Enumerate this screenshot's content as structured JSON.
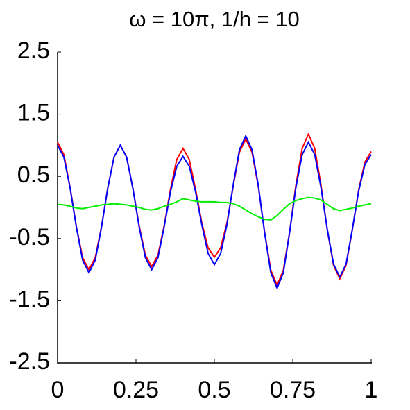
{
  "chart_data": {
    "type": "line",
    "title": "ω = 10π, 1/h = 10",
    "x": [
      0,
      0.02,
      0.04,
      0.06,
      0.08,
      0.1,
      0.12,
      0.14,
      0.16,
      0.18,
      0.2,
      0.22,
      0.24,
      0.26,
      0.28,
      0.3,
      0.32,
      0.34,
      0.36,
      0.38,
      0.4,
      0.42,
      0.44,
      0.46,
      0.48,
      0.5,
      0.52,
      0.54,
      0.56,
      0.58,
      0.6,
      0.62,
      0.64,
      0.66,
      0.68,
      0.7,
      0.72,
      0.74,
      0.76,
      0.78,
      0.8,
      0.82,
      0.84,
      0.86,
      0.88,
      0.9,
      0.92,
      0.94,
      0.96,
      0.98,
      1
    ],
    "series": [
      {
        "color": "#ff0000",
        "values": [
          1.05,
          0.85,
          0.32,
          -0.31,
          -0.81,
          -1.0,
          -0.81,
          -0.31,
          0.31,
          0.81,
          1.0,
          0.81,
          0.31,
          -0.29,
          -0.77,
          -0.95,
          -0.77,
          -0.29,
          0.29,
          0.77,
          0.95,
          0.77,
          0.29,
          -0.25,
          -0.65,
          -0.8,
          -0.65,
          -0.25,
          0.34,
          0.89,
          1.1,
          0.89,
          0.34,
          -0.39,
          -1.01,
          -1.25,
          -1.01,
          -0.39,
          0.36,
          0.95,
          1.18,
          0.95,
          0.36,
          -0.36,
          -0.93,
          -1.15,
          -0.93,
          -0.36,
          0.28,
          0.73,
          0.9
        ]
      },
      {
        "color": "#0000ff",
        "values": [
          1.0,
          0.81,
          0.31,
          -0.32,
          -0.85,
          -1.05,
          -0.85,
          -0.32,
          0.31,
          0.81,
          1.0,
          0.81,
          0.31,
          -0.31,
          -0.81,
          -1.0,
          -0.81,
          -0.31,
          0.25,
          0.66,
          0.82,
          0.66,
          0.25,
          -0.28,
          -0.74,
          -0.92,
          -0.74,
          -0.28,
          0.36,
          0.93,
          1.15,
          0.93,
          0.36,
          -0.4,
          -1.05,
          -1.3,
          -1.05,
          -0.4,
          0.32,
          0.85,
          1.05,
          0.85,
          0.32,
          -0.35,
          -0.91,
          -1.12,
          -0.91,
          -0.35,
          0.26,
          0.69,
          0.85
        ]
      },
      {
        "color": "#00ee00",
        "values": [
          0.05,
          0.04,
          0.02,
          -0.01,
          -0.02,
          0.0,
          0.02,
          0.04,
          0.05,
          0.06,
          0.05,
          0.04,
          0.02,
          0.0,
          -0.03,
          -0.04,
          -0.02,
          0.02,
          0.05,
          0.09,
          0.14,
          0.12,
          0.1,
          0.09,
          0.09,
          0.09,
          0.08,
          0.08,
          0.06,
          0.02,
          -0.04,
          -0.1,
          -0.15,
          -0.19,
          -0.2,
          -0.13,
          -0.03,
          0.06,
          0.11,
          0.14,
          0.16,
          0.15,
          0.12,
          0.05,
          -0.02,
          -0.05,
          -0.03,
          -0.01,
          0.02,
          0.04,
          0.06
        ]
      }
    ],
    "xlim": [
      0,
      1
    ],
    "xticks": [
      0,
      0.25,
      0.5,
      0.75,
      1
    ],
    "ylim": [
      -2.5,
      2.5
    ],
    "yticks": [
      2.5,
      1.5,
      0.5,
      -0.5,
      -1.5,
      -2.5
    ]
  }
}
